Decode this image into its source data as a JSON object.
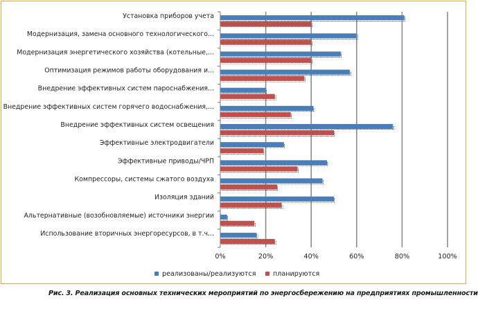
{
  "chart_data": {
    "type": "bar",
    "orientation": "horizontal",
    "categories": [
      "Установка приборов учета",
      "Модернизация, замена основного технологического...",
      "Модернизация энергетического хозяйства (котельные,...",
      "Оптимизация режимов работы оборудования и...",
      "Внедрение эффективных систем пароснабжения...",
      "Внедрение эффективных систем горячего водоснабжения,...",
      "Внедрение эффективных систем освещения",
      "Эффективные электродвигатели",
      "Эффективные приводы/ЧРП",
      "Компрессоры, системы сжатого воздуха",
      "Изоляция зданий",
      "Альтернативные (возобновляемые) источники энергии",
      "Использование вторичных энергоресурсов, в т.ч..."
    ],
    "series": [
      {
        "name": "реализованы/реализуются",
        "color": "#4a7ebb",
        "values": [
          81,
          60,
          53,
          57,
          20,
          41,
          76,
          28,
          47,
          45,
          50,
          3,
          16
        ]
      },
      {
        "name": "планируются",
        "color": "#c0504d",
        "values": [
          40,
          40,
          40,
          37,
          24,
          31,
          50,
          19,
          34,
          25,
          27,
          15,
          24
        ]
      }
    ],
    "xlim": [
      0,
      100
    ],
    "xticks": [
      "0%",
      "20%",
      "40%",
      "60%",
      "80%",
      "100%"
    ],
    "gridlines": true,
    "legend": "bottom"
  },
  "caption": "Рис. 3. Реализация основных технических мероприятий по энергосбережению на предприятиях промышленности"
}
